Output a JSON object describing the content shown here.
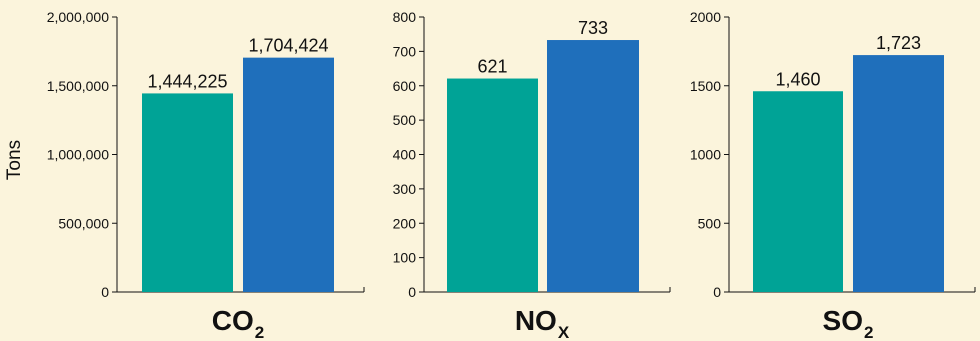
{
  "page": {
    "background": "#fbf4dc"
  },
  "ylabel": "Tons",
  "colors": {
    "series_a": "#00a396",
    "series_b": "#1f6fbb",
    "axis": "#111111"
  },
  "chart_data": [
    {
      "type": "bar",
      "category_main": "CO",
      "category_sub": "2",
      "ylim": [
        0,
        2000000
      ],
      "yticks": [
        0,
        500000,
        1000000,
        1500000,
        2000000
      ],
      "ytick_labels": [
        "0",
        "500,000",
        "1,000,000",
        "1,500,000",
        "2,000,000"
      ],
      "values": [
        1444225,
        1704424
      ],
      "value_labels": [
        "1,444,225",
        "1,704,424"
      ]
    },
    {
      "type": "bar",
      "category_main": "NO",
      "category_sub": "X",
      "ylim": [
        0,
        800
      ],
      "yticks": [
        0,
        100,
        200,
        300,
        400,
        500,
        600,
        700,
        800
      ],
      "ytick_labels": [
        "0",
        "100",
        "200",
        "300",
        "400",
        "500",
        "600",
        "700",
        "800"
      ],
      "values": [
        621,
        733
      ],
      "value_labels": [
        "621",
        "733"
      ]
    },
    {
      "type": "bar",
      "category_main": "SO",
      "category_sub": "2",
      "ylim": [
        0,
        2000
      ],
      "yticks": [
        0,
        500,
        1000,
        1500,
        2000
      ],
      "ytick_labels": [
        "0",
        "500",
        "1000",
        "1500",
        "2000"
      ],
      "values": [
        1460,
        1723
      ],
      "value_labels": [
        "1,460",
        "1,723"
      ]
    }
  ]
}
